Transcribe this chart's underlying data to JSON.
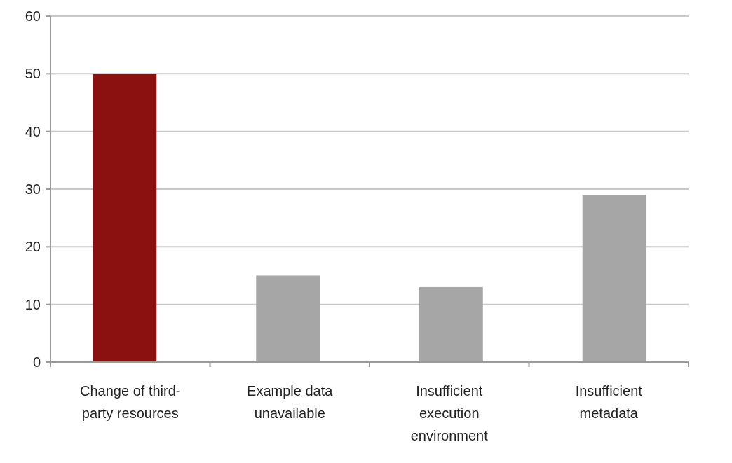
{
  "chart_data": {
    "type": "bar",
    "categories": [
      "Change of third-party resources",
      "Example data unavailable",
      "Insufficient execution environment",
      "Insufficient metadata"
    ],
    "values": [
      50,
      15,
      13,
      29
    ],
    "colors": [
      "#8b1010",
      "#a6a6a6",
      "#a6a6a6",
      "#a6a6a6"
    ],
    "ylim": [
      0,
      60
    ],
    "yticks": [
      0,
      10,
      20,
      30,
      40,
      50,
      60
    ],
    "grid": "y"
  }
}
